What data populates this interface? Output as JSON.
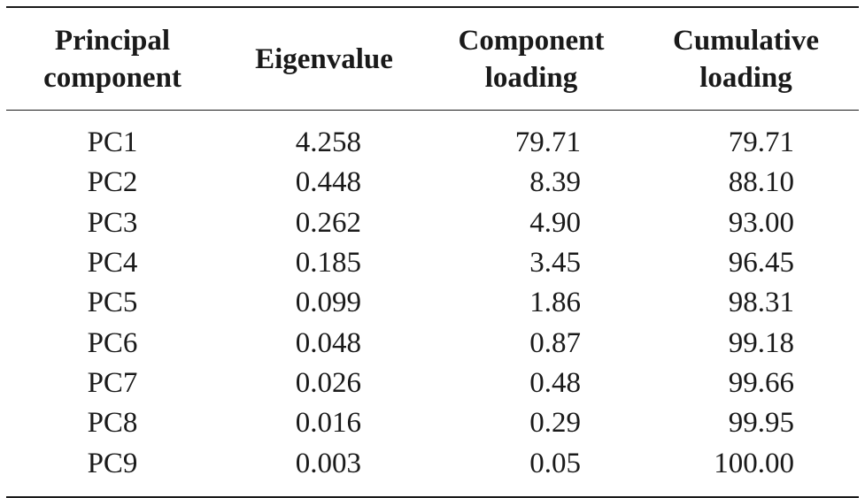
{
  "table": {
    "headers": [
      "Principal\ncomponent",
      "Eigenvalue",
      "Component\nloading",
      "Cumulative\nloading"
    ],
    "rows": [
      [
        "PC1",
        "4.258",
        "79.71",
        "79.71"
      ],
      [
        "PC2",
        "0.448",
        "8.39",
        "88.10"
      ],
      [
        "PC3",
        "0.262",
        "4.90",
        "93.00"
      ],
      [
        "PC4",
        "0.185",
        "3.45",
        "96.45"
      ],
      [
        "PC5",
        "0.099",
        "1.86",
        "98.31"
      ],
      [
        "PC6",
        "0.048",
        "0.87",
        "99.18"
      ],
      [
        "PC7",
        "0.026",
        "0.48",
        "99.66"
      ],
      [
        "PC8",
        "0.016",
        "0.29",
        "99.95"
      ],
      [
        "PC9",
        "0.003",
        "0.05",
        "100.00"
      ]
    ]
  }
}
